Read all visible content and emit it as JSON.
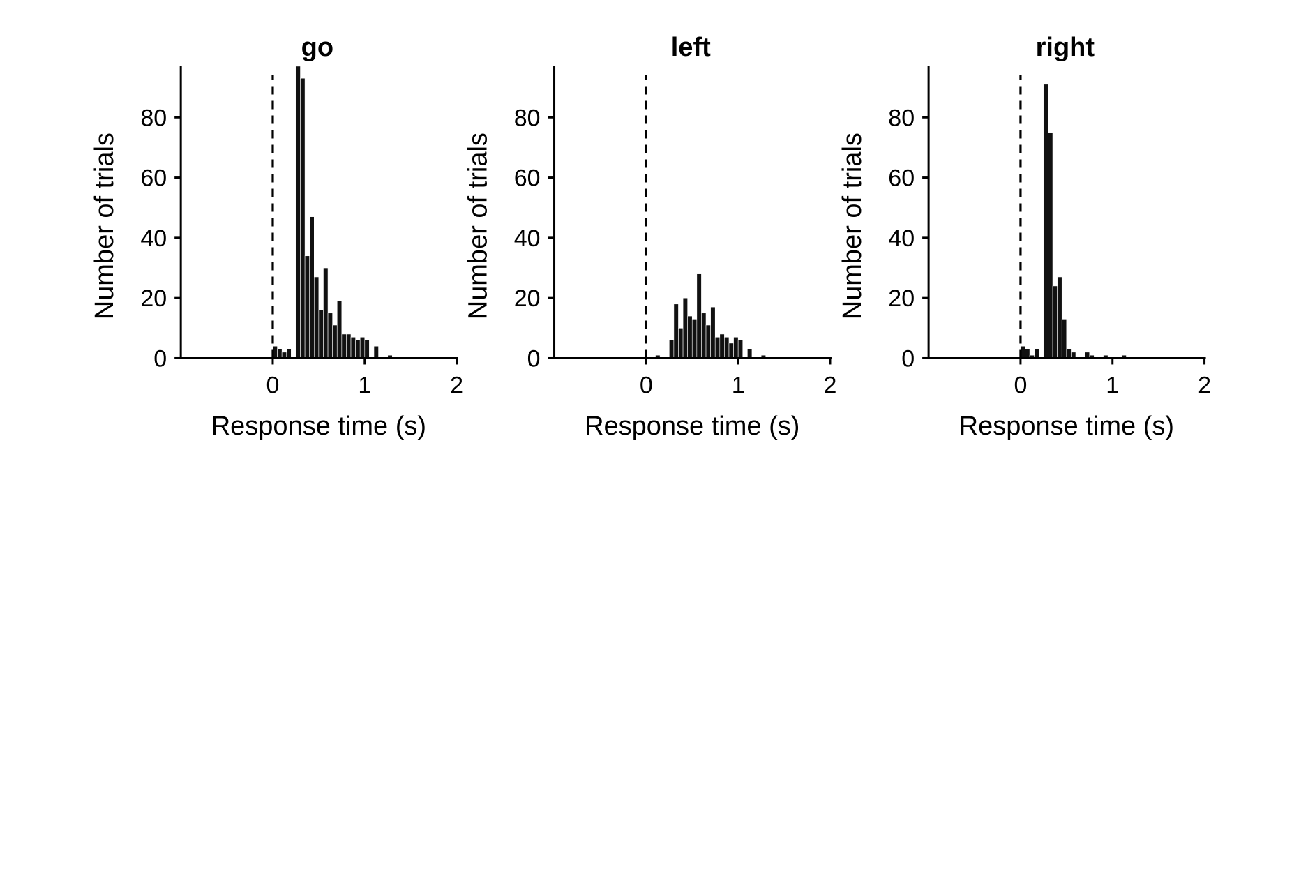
{
  "chart_data": [
    {
      "type": "bar",
      "title": "go",
      "xlabel": "Response time (s)",
      "ylabel": "Number of trials",
      "xlim": [
        -1,
        2
      ],
      "ylim": [
        0,
        97
      ],
      "xticks": [
        "0",
        "1",
        "2"
      ],
      "yticks": [
        "0",
        "20",
        "40",
        "60",
        "80"
      ],
      "bin_width": 0.05,
      "reference_line": {
        "x": 0,
        "style": "dashed"
      },
      "bins": [
        {
          "x": 0.0,
          "count": 4
        },
        {
          "x": 0.05,
          "count": 3
        },
        {
          "x": 0.1,
          "count": 2
        },
        {
          "x": 0.15,
          "count": 3
        },
        {
          "x": 0.25,
          "count": 97
        },
        {
          "x": 0.3,
          "count": 93
        },
        {
          "x": 0.35,
          "count": 34
        },
        {
          "x": 0.4,
          "count": 47
        },
        {
          "x": 0.45,
          "count": 27
        },
        {
          "x": 0.5,
          "count": 16
        },
        {
          "x": 0.55,
          "count": 30
        },
        {
          "x": 0.6,
          "count": 15
        },
        {
          "x": 0.65,
          "count": 11
        },
        {
          "x": 0.7,
          "count": 19
        },
        {
          "x": 0.75,
          "count": 8
        },
        {
          "x": 0.8,
          "count": 8
        },
        {
          "x": 0.85,
          "count": 7
        },
        {
          "x": 0.9,
          "count": 6
        },
        {
          "x": 0.95,
          "count": 7
        },
        {
          "x": 1.0,
          "count": 6
        },
        {
          "x": 1.1,
          "count": 4
        },
        {
          "x": 1.25,
          "count": 1
        }
      ]
    },
    {
      "type": "bar",
      "title": "left",
      "xlabel": "Response time (s)",
      "ylabel": "Number of trials",
      "xlim": [
        -1,
        2
      ],
      "ylim": [
        0,
        97
      ],
      "xticks": [
        "0",
        "1",
        "2"
      ],
      "yticks": [
        "0",
        "20",
        "40",
        "60",
        "80"
      ],
      "bin_width": 0.05,
      "reference_line": {
        "x": 0,
        "style": "dashed"
      },
      "bins": [
        {
          "x": 0.1,
          "count": 1
        },
        {
          "x": 0.25,
          "count": 6
        },
        {
          "x": 0.3,
          "count": 18
        },
        {
          "x": 0.35,
          "count": 10
        },
        {
          "x": 0.4,
          "count": 20
        },
        {
          "x": 0.45,
          "count": 14
        },
        {
          "x": 0.5,
          "count": 13
        },
        {
          "x": 0.55,
          "count": 28
        },
        {
          "x": 0.6,
          "count": 15
        },
        {
          "x": 0.65,
          "count": 11
        },
        {
          "x": 0.7,
          "count": 17
        },
        {
          "x": 0.75,
          "count": 7
        },
        {
          "x": 0.8,
          "count": 8
        },
        {
          "x": 0.85,
          "count": 7
        },
        {
          "x": 0.9,
          "count": 5
        },
        {
          "x": 0.95,
          "count": 7
        },
        {
          "x": 1.0,
          "count": 6
        },
        {
          "x": 1.1,
          "count": 3
        },
        {
          "x": 1.25,
          "count": 1
        }
      ]
    },
    {
      "type": "bar",
      "title": "right",
      "xlabel": "Response time (s)",
      "ylabel": "Number of trials",
      "xlim": [
        -1,
        2
      ],
      "ylim": [
        0,
        97
      ],
      "xticks": [
        "0",
        "1",
        "2"
      ],
      "yticks": [
        "0",
        "20",
        "40",
        "60",
        "80"
      ],
      "bin_width": 0.05,
      "reference_line": {
        "x": 0,
        "style": "dashed"
      },
      "bins": [
        {
          "x": 0.0,
          "count": 4
        },
        {
          "x": 0.05,
          "count": 3
        },
        {
          "x": 0.1,
          "count": 1
        },
        {
          "x": 0.15,
          "count": 3
        },
        {
          "x": 0.25,
          "count": 91
        },
        {
          "x": 0.3,
          "count": 75
        },
        {
          "x": 0.35,
          "count": 24
        },
        {
          "x": 0.4,
          "count": 27
        },
        {
          "x": 0.45,
          "count": 13
        },
        {
          "x": 0.5,
          "count": 3
        },
        {
          "x": 0.55,
          "count": 2
        },
        {
          "x": 0.7,
          "count": 2
        },
        {
          "x": 0.75,
          "count": 1
        },
        {
          "x": 0.9,
          "count": 1
        },
        {
          "x": 1.1,
          "count": 1
        }
      ]
    }
  ]
}
